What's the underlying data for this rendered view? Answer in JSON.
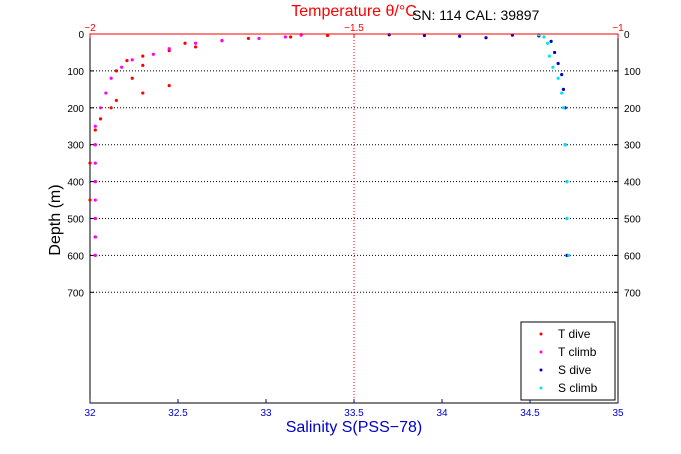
{
  "chart_data": {
    "type": "scatter",
    "top_title": "Temperature θ/°C",
    "serial_text": "SN: 114  CAL: 39897",
    "xlabel": "Salinity S(PSS−78)",
    "ylabel": "Depth (m)",
    "xlim": [
      32,
      35
    ],
    "temp_lim": [
      -2,
      -1
    ],
    "ylim": [
      0,
      1000
    ],
    "x_ticks": [
      "32",
      "32.5",
      "33",
      "33.5",
      "34",
      "34.5",
      "35"
    ],
    "x_tick_values": [
      32,
      32.5,
      33,
      33.5,
      34,
      34.5,
      35
    ],
    "temp_ticks": [
      "−2",
      "−1.5",
      "−1"
    ],
    "temp_tick_values": [
      -2,
      -1.5,
      -1
    ],
    "y_ticks": [
      "0",
      "100",
      "200",
      "300",
      "400",
      "500",
      "600",
      "700"
    ],
    "y_tick_values": [
      0,
      100,
      200,
      300,
      400,
      500,
      600,
      700
    ],
    "grid": true,
    "legend_position": "bottom-right",
    "colors": {
      "T dive": "#ff0000",
      "T climb": "#ff00ff",
      "S dive": "#0000cc",
      "S climb": "#00e5ee",
      "axis": "#0000cc",
      "temp_axis": "#ff0000"
    },
    "series": [
      {
        "name": "T dive",
        "axis": "temperature",
        "points": [
          [
            -1.6,
            2
          ],
          [
            -1.55,
            4
          ],
          [
            -1.62,
            8
          ],
          [
            -1.7,
            12
          ],
          [
            -1.75,
            18
          ],
          [
            -1.82,
            25
          ],
          [
            -1.8,
            35
          ],
          [
            -1.85,
            45
          ],
          [
            -1.9,
            60
          ],
          [
            -1.93,
            72
          ],
          [
            -1.9,
            85
          ],
          [
            -1.95,
            100
          ],
          [
            -1.92,
            120
          ],
          [
            -1.85,
            140
          ],
          [
            -1.9,
            160
          ],
          [
            -1.95,
            180
          ],
          [
            -1.96,
            200
          ],
          [
            -1.98,
            230
          ],
          [
            -1.99,
            260
          ],
          [
            -1.99,
            300
          ],
          [
            -2.0,
            350
          ],
          [
            -1.99,
            400
          ],
          [
            -2.0,
            450
          ],
          [
            -1.99,
            500
          ],
          [
            -1.99,
            550
          ],
          [
            -1.99,
            600
          ]
        ]
      },
      {
        "name": "T climb",
        "axis": "temperature",
        "points": [
          [
            -1.6,
            3
          ],
          [
            -1.63,
            8
          ],
          [
            -1.68,
            12
          ],
          [
            -1.75,
            18
          ],
          [
            -1.8,
            25
          ],
          [
            -1.85,
            40
          ],
          [
            -1.88,
            55
          ],
          [
            -1.92,
            70
          ],
          [
            -1.94,
            90
          ],
          [
            -1.96,
            120
          ],
          [
            -1.97,
            160
          ],
          [
            -1.98,
            200
          ],
          [
            -1.99,
            250
          ],
          [
            -1.99,
            300
          ],
          [
            -1.99,
            350
          ],
          [
            -1.99,
            400
          ],
          [
            -1.99,
            450
          ],
          [
            -1.99,
            500
          ],
          [
            -1.99,
            550
          ],
          [
            -1.99,
            600
          ]
        ]
      },
      {
        "name": "S dive",
        "axis": "salinity",
        "points": [
          [
            33.7,
            2
          ],
          [
            33.9,
            4
          ],
          [
            34.1,
            6
          ],
          [
            34.25,
            10
          ],
          [
            34.4,
            3
          ],
          [
            34.55,
            5
          ],
          [
            34.62,
            20
          ],
          [
            34.64,
            50
          ],
          [
            34.66,
            80
          ],
          [
            34.68,
            110
          ],
          [
            34.69,
            150
          ],
          [
            34.7,
            200
          ],
          [
            34.7,
            300
          ],
          [
            34.71,
            400
          ],
          [
            34.71,
            500
          ],
          [
            34.71,
            600
          ]
        ]
      },
      {
        "name": "S climb",
        "axis": "salinity",
        "points": [
          [
            34.55,
            2
          ],
          [
            34.58,
            8
          ],
          [
            34.6,
            25
          ],
          [
            34.61,
            60
          ],
          [
            34.63,
            90
          ],
          [
            34.66,
            120
          ],
          [
            34.68,
            160
          ],
          [
            34.69,
            200
          ],
          [
            34.7,
            300
          ],
          [
            34.71,
            400
          ],
          [
            34.71,
            500
          ],
          [
            34.72,
            600
          ]
        ]
      }
    ]
  }
}
